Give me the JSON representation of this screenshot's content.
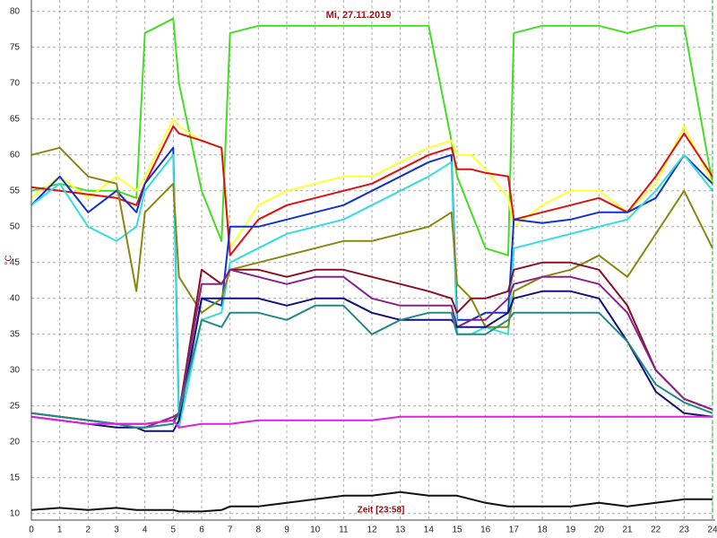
{
  "chart_data": {
    "type": "line",
    "title": "Mi, 27.11.2019",
    "xlabel": "Zeit [23:58]",
    "ylabel": "°C",
    "x": [
      0,
      1,
      2,
      3,
      3.7,
      4,
      5,
      5.2,
      6,
      6.7,
      7,
      8,
      9,
      10,
      11,
      12,
      13,
      14,
      14.8,
      15,
      15.5,
      16,
      16.8,
      17,
      18,
      19,
      20,
      21,
      22,
      23,
      24
    ],
    "series": [
      {
        "color": "#44dd22",
        "values": [
          55,
          56,
          55,
          55,
          54,
          77,
          79,
          70,
          55,
          48,
          77,
          78,
          78,
          78,
          78,
          78,
          78,
          78,
          62,
          57,
          52,
          47,
          46,
          77,
          78,
          78,
          78,
          77,
          78,
          78,
          56
        ]
      },
      {
        "color": "#ffff33",
        "values": [
          54,
          57,
          54,
          57,
          55,
          57,
          65,
          64,
          62,
          61,
          47,
          53,
          55,
          56,
          57,
          57,
          59,
          61,
          62,
          60,
          60,
          58,
          54,
          50,
          53,
          55,
          55,
          52,
          56,
          64,
          56
        ]
      },
      {
        "color": "#dd1111",
        "values": [
          55.5,
          55,
          54.5,
          54,
          53,
          56,
          64,
          63,
          62,
          61,
          46,
          51,
          53,
          54,
          55,
          56,
          58,
          60,
          61,
          58,
          58,
          57.5,
          57,
          51,
          52,
          53,
          54,
          52,
          57,
          63,
          57
        ]
      },
      {
        "color": "#1133cc",
        "values": [
          53,
          57,
          52,
          55,
          52,
          56,
          61,
          23,
          40,
          39,
          50,
          50,
          51,
          52,
          53,
          55,
          57,
          59,
          60,
          37,
          37,
          38,
          38,
          51,
          50.5,
          51,
          52,
          52,
          54,
          60,
          56
        ]
      },
      {
        "color": "#33dddd",
        "values": [
          53,
          56,
          50,
          48,
          50,
          55,
          60,
          22,
          37,
          38,
          45,
          47,
          49,
          50,
          51,
          53,
          55,
          57,
          59,
          35,
          35,
          36,
          35,
          47,
          48,
          49,
          50,
          51,
          55,
          60,
          55
        ]
      },
      {
        "color": "#888811",
        "values": [
          60,
          61,
          57,
          56,
          41,
          52,
          56,
          43,
          38,
          40,
          44,
          45,
          46,
          47,
          48,
          48,
          49,
          50,
          52,
          42,
          40,
          36,
          36,
          41,
          43,
          44,
          46,
          43,
          49,
          55,
          47
        ]
      },
      {
        "color": "#881122",
        "values": [
          24,
          23.5,
          23,
          22.5,
          22.5,
          22.5,
          23,
          24,
          44,
          42,
          44,
          44,
          43,
          44,
          44,
          43,
          42,
          41,
          40,
          38,
          40,
          40,
          41,
          44,
          45,
          45,
          44,
          39,
          30,
          26,
          24.5
        ]
      },
      {
        "color": "#882288",
        "values": [
          24,
          23.5,
          23,
          22.5,
          22,
          22,
          23.5,
          24,
          42,
          42,
          44,
          43,
          42,
          43,
          43,
          40,
          39,
          39,
          39,
          36,
          37,
          37,
          40,
          42,
          43,
          43,
          42,
          38,
          30,
          26,
          24.5
        ]
      },
      {
        "color": "#111177",
        "values": [
          23.5,
          23,
          22.5,
          22,
          22,
          21.5,
          21.5,
          23,
          40,
          40,
          40,
          40,
          39,
          40,
          40,
          38,
          37,
          37,
          37,
          36,
          36,
          36,
          38,
          40,
          41,
          41,
          40,
          34,
          27,
          24,
          23.5
        ]
      },
      {
        "color": "#228888",
        "values": [
          24,
          23.5,
          23,
          22.5,
          22,
          22,
          22.5,
          24,
          37,
          36,
          38,
          38,
          37,
          39,
          39,
          35,
          37,
          38,
          38,
          35,
          35,
          35,
          37,
          38,
          38,
          38,
          38,
          34,
          28,
          25.5,
          24
        ]
      },
      {
        "color": "#dd22dd",
        "values": [
          23.5,
          23,
          22.5,
          22.5,
          22.5,
          22.5,
          23,
          22,
          22.5,
          22.5,
          22.5,
          23,
          23,
          23,
          23,
          23,
          23.5,
          23.5,
          23.5,
          23.5,
          23.5,
          23.5,
          23.5,
          23.5,
          23.5,
          23.5,
          23.5,
          23.5,
          23.5,
          23.5,
          23.5
        ]
      },
      {
        "color": "#111111",
        "values": [
          10.5,
          10.8,
          10.5,
          10.8,
          10.5,
          10.5,
          10.5,
          10.3,
          10.3,
          10.5,
          11,
          11,
          11.5,
          12,
          12.5,
          12.5,
          13,
          12.5,
          12.5,
          12.5,
          12,
          11.5,
          11,
          11,
          11,
          11,
          11.5,
          11,
          11.5,
          12,
          12
        ]
      }
    ],
    "xlim": [
      0,
      24
    ],
    "xticks": [
      0,
      1,
      2,
      3,
      4,
      5,
      6,
      7,
      8,
      9,
      10,
      11,
      12,
      13,
      14,
      15,
      16,
      17,
      18,
      19,
      20,
      21,
      22,
      23,
      24
    ],
    "ylim": [
      9.1,
      81.6
    ],
    "yticks": [
      10,
      15,
      20,
      25,
      30,
      35,
      40,
      45,
      50,
      55,
      60,
      65,
      70,
      75,
      80
    ],
    "grid": true
  }
}
